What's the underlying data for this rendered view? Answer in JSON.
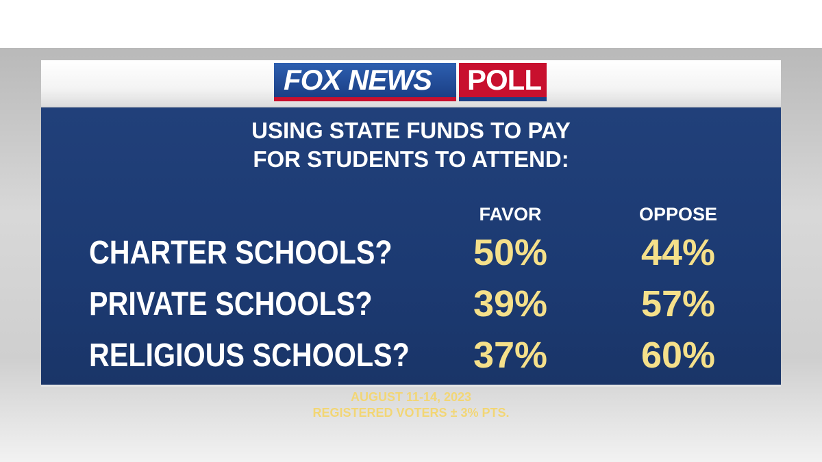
{
  "header": {
    "logo_left": "FOX NEWS",
    "logo_right": "POLL"
  },
  "title": [
    "USING STATE FUNDS TO PAY",
    "FOR STUDENTS TO ATTEND:"
  ],
  "table": {
    "columns": [
      "FAVOR",
      "OPPOSE"
    ],
    "rows": [
      [
        "CHARTER SCHOOLS?",
        "50%",
        "44%"
      ],
      [
        "PRIVATE SCHOOLS?",
        "39%",
        "57%"
      ],
      [
        "RELIGIOUS SCHOOLS?",
        "37%",
        "60%"
      ]
    ]
  },
  "footer": [
    "AUGUST 11-14, 2023",
    "REGISTERED VOTERS ± 3% PTS."
  ]
}
